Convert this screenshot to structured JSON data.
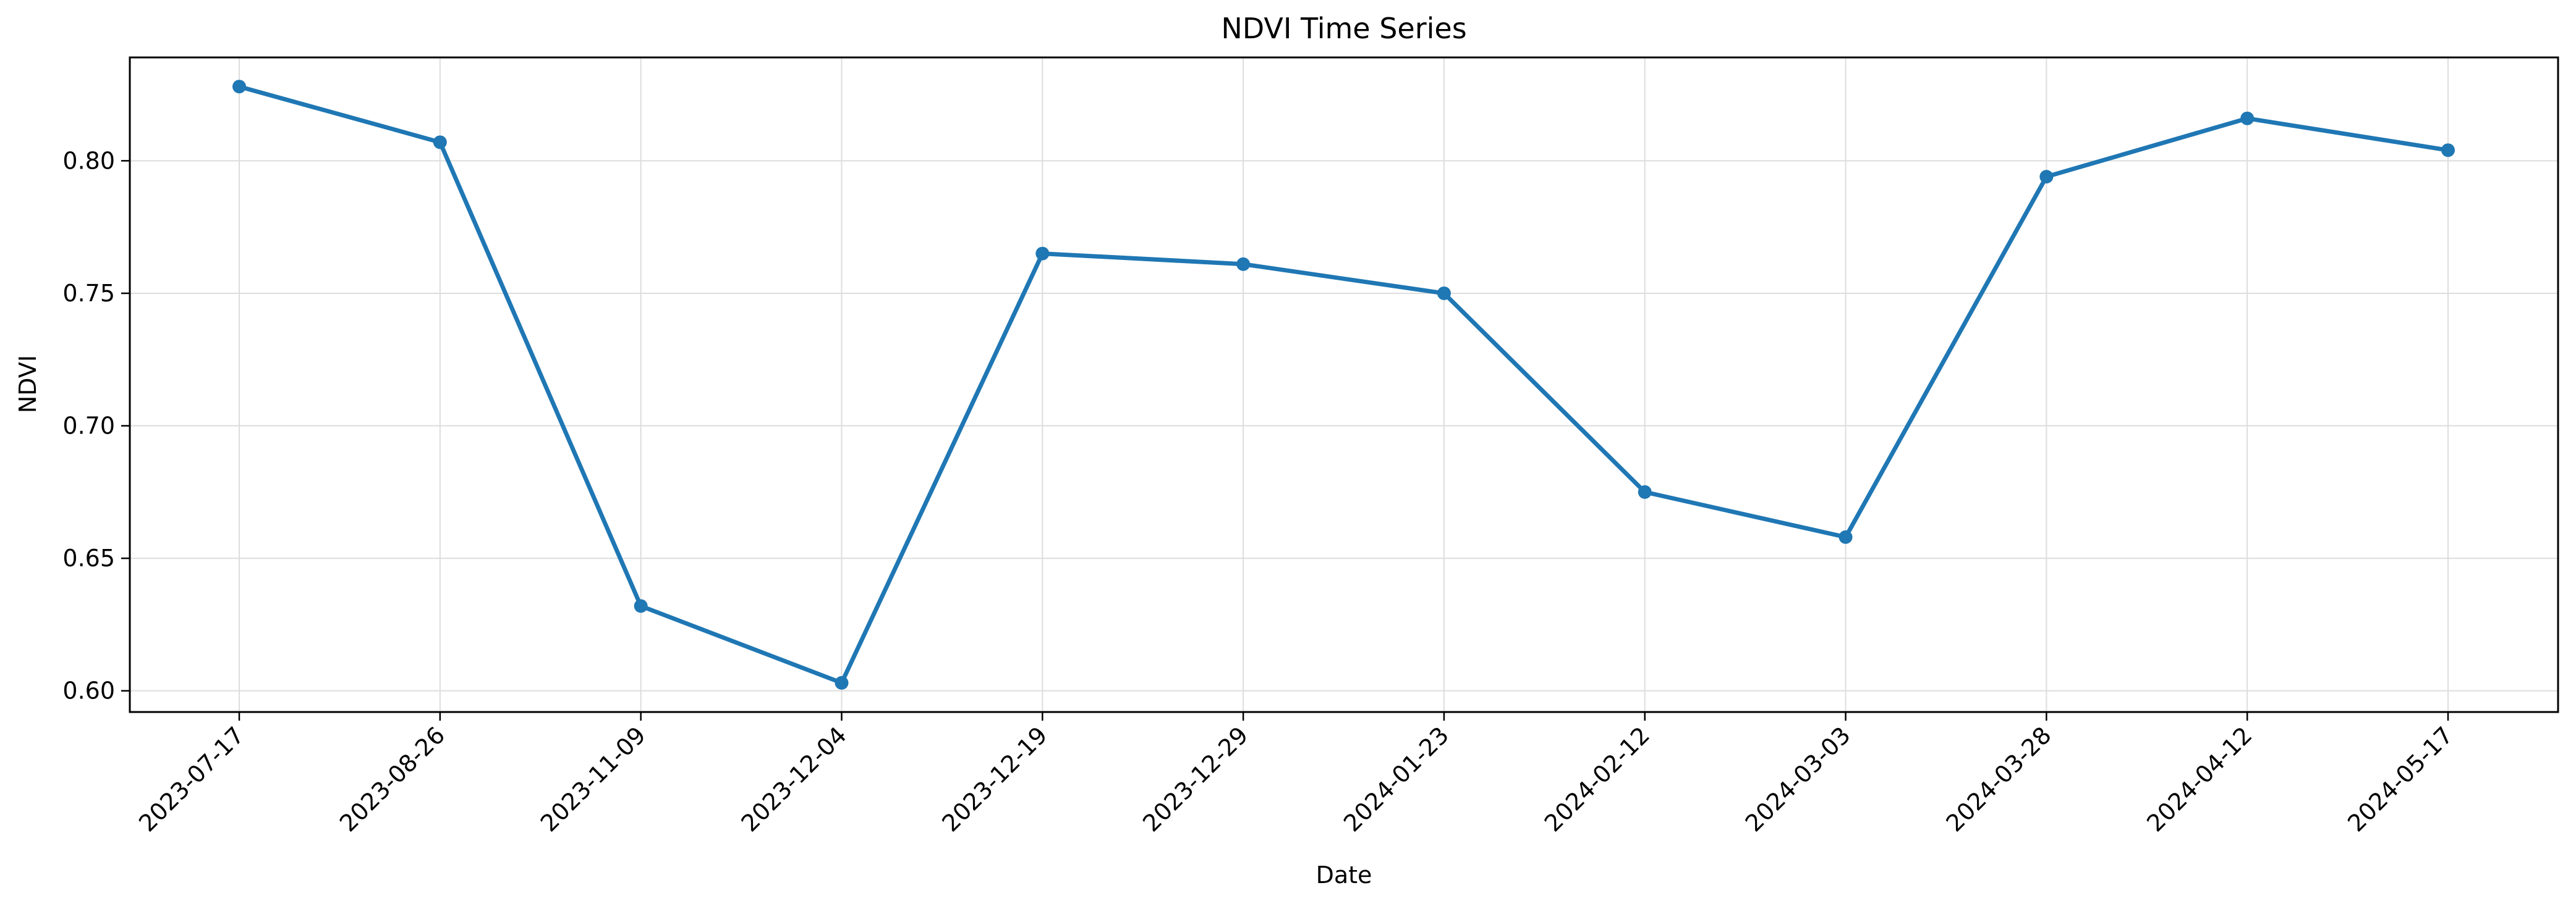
{
  "chart_data": {
    "type": "line",
    "title": "NDVI Time Series",
    "xlabel": "Date",
    "ylabel": "NDVI",
    "categories": [
      "2023-07-17",
      "2023-08-26",
      "2023-11-09",
      "2023-12-04",
      "2023-12-19",
      "2023-12-29",
      "2024-01-23",
      "2024-02-12",
      "2024-03-03",
      "2024-03-28",
      "2024-04-12",
      "2024-05-17"
    ],
    "series": [
      {
        "values": [
          0.828,
          0.807,
          0.632,
          0.603,
          0.765,
          0.761,
          0.75,
          0.675,
          0.658,
          0.794,
          0.816,
          0.804
        ]
      }
    ],
    "y_ticks": [
      "0.60",
      "0.65",
      "0.70",
      "0.75",
      "0.80"
    ],
    "ylim": [
      0.592,
      0.839
    ],
    "grid": true,
    "markers": true,
    "colors": {
      "line": "#1f77b4",
      "grid": "#dddddd",
      "axis": "#000000"
    }
  }
}
